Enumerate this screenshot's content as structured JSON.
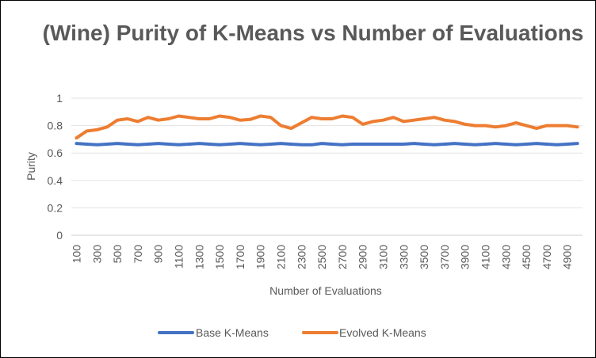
{
  "chart_data": {
    "type": "line",
    "title": "(Wine) Purity of K-Means vs Number of Evaluations",
    "xlabel": "Number of Evaluations",
    "ylabel": "Purity",
    "ylim": [
      0,
      1
    ],
    "y_ticks": [
      "0",
      "0.2",
      "0.4",
      "0.6",
      "0.8",
      "1"
    ],
    "grid": true,
    "legend_position": "bottom",
    "categories": [
      100,
      200,
      300,
      400,
      500,
      600,
      700,
      800,
      900,
      1000,
      1100,
      1200,
      1300,
      1400,
      1500,
      1600,
      1700,
      1800,
      1900,
      2000,
      2100,
      2200,
      2300,
      2400,
      2500,
      2600,
      2700,
      2800,
      2900,
      3000,
      3100,
      3200,
      3300,
      3400,
      3500,
      3600,
      3700,
      3800,
      3900,
      4000,
      4100,
      4200,
      4300,
      4400,
      4500,
      4600,
      4700,
      4800,
      4900,
      5000
    ],
    "x_tick_labels": [
      "100",
      "300",
      "500",
      "700",
      "900",
      "1100",
      "1300",
      "1500",
      "1700",
      "1900",
      "2100",
      "2300",
      "2500",
      "2700",
      "2900",
      "3100",
      "3300",
      "3500",
      "3700",
      "3900",
      "4100",
      "4300",
      "4500",
      "4700",
      "4900"
    ],
    "series": [
      {
        "name": "Base K-Means",
        "color": "#4472C4",
        "values": [
          0.67,
          0.665,
          0.66,
          0.665,
          0.67,
          0.665,
          0.66,
          0.665,
          0.67,
          0.665,
          0.66,
          0.665,
          0.67,
          0.665,
          0.66,
          0.665,
          0.67,
          0.665,
          0.66,
          0.665,
          0.67,
          0.665,
          0.66,
          0.66,
          0.67,
          0.665,
          0.66,
          0.665,
          0.665,
          0.665,
          0.665,
          0.665,
          0.665,
          0.67,
          0.665,
          0.66,
          0.665,
          0.67,
          0.665,
          0.66,
          0.665,
          0.67,
          0.665,
          0.66,
          0.665,
          0.67,
          0.665,
          0.66,
          0.665,
          0.67
        ]
      },
      {
        "name": "Evolved K-Means",
        "color": "#ED7D31",
        "values": [
          0.71,
          0.76,
          0.77,
          0.79,
          0.84,
          0.85,
          0.83,
          0.86,
          0.84,
          0.85,
          0.87,
          0.86,
          0.85,
          0.85,
          0.87,
          0.86,
          0.84,
          0.845,
          0.87,
          0.86,
          0.8,
          0.78,
          0.82,
          0.86,
          0.85,
          0.85,
          0.87,
          0.86,
          0.81,
          0.83,
          0.84,
          0.86,
          0.83,
          0.84,
          0.85,
          0.86,
          0.84,
          0.83,
          0.81,
          0.8,
          0.8,
          0.79,
          0.8,
          0.82,
          0.8,
          0.78,
          0.8,
          0.8,
          0.8,
          0.79
        ]
      }
    ]
  }
}
